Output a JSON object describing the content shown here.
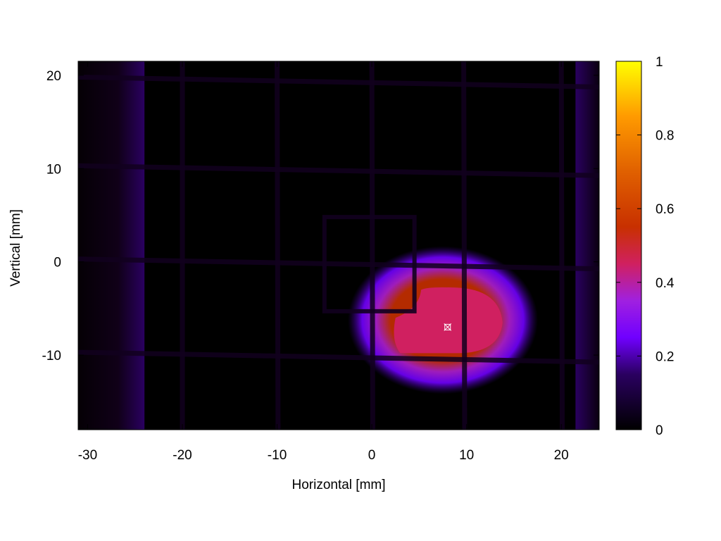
{
  "chart_data": {
    "type": "heatmap",
    "title": "",
    "xlabel": "Horizontal [mm]",
    "ylabel": "Vertical [mm]",
    "xlim": [
      -31,
      24
    ],
    "ylim": [
      -18,
      21.5
    ],
    "x_ticks": [
      {
        "value": -30,
        "label": "-30"
      },
      {
        "value": -20,
        "label": "-20"
      },
      {
        "value": -10,
        "label": "-10"
      },
      {
        "value": 0,
        "label": "0"
      },
      {
        "value": 10,
        "label": "10"
      },
      {
        "value": 20,
        "label": "20"
      }
    ],
    "y_ticks": [
      {
        "value": 20,
        "label": "20"
      },
      {
        "value": 10,
        "label": "10"
      },
      {
        "value": 0,
        "label": "0"
      },
      {
        "value": -10,
        "label": "-10"
      }
    ],
    "colorbar": {
      "range": [
        0,
        1
      ],
      "ticks": [
        {
          "value": 0,
          "label": "0"
        },
        {
          "value": 0.2,
          "label": "0.2"
        },
        {
          "value": 0.4,
          "label": "0.4"
        },
        {
          "value": 0.6,
          "label": "0.6"
        },
        {
          "value": 0.8,
          "label": "0.8"
        },
        {
          "value": 1,
          "label": "1"
        }
      ],
      "colormap": [
        {
          "value": 0.0,
          "color": "#000000"
        },
        {
          "value": 0.15,
          "color": "#2a0060"
        },
        {
          "value": 0.25,
          "color": "#7000ff"
        },
        {
          "value": 0.35,
          "color": "#a020e0"
        },
        {
          "value": 0.45,
          "color": "#d02060"
        },
        {
          "value": 0.55,
          "color": "#c83000"
        },
        {
          "value": 0.7,
          "color": "#e06000"
        },
        {
          "value": 0.85,
          "color": "#ff9a00"
        },
        {
          "value": 1.0,
          "color": "#ffff00"
        }
      ]
    },
    "background_level": 0.1,
    "grid_wire_x": [
      -20,
      -10,
      0,
      9.7,
      20
    ],
    "grid_wire_y": [
      19.5,
      10,
      0,
      -10
    ],
    "square_outline": {
      "x": [
        -5,
        4.5
      ],
      "y": [
        -5.3,
        4.8
      ]
    },
    "beam": {
      "center": [
        7.5,
        -7
      ],
      "peak_level": 0.5
    },
    "marker": {
      "x": 8,
      "y": -7
    }
  }
}
